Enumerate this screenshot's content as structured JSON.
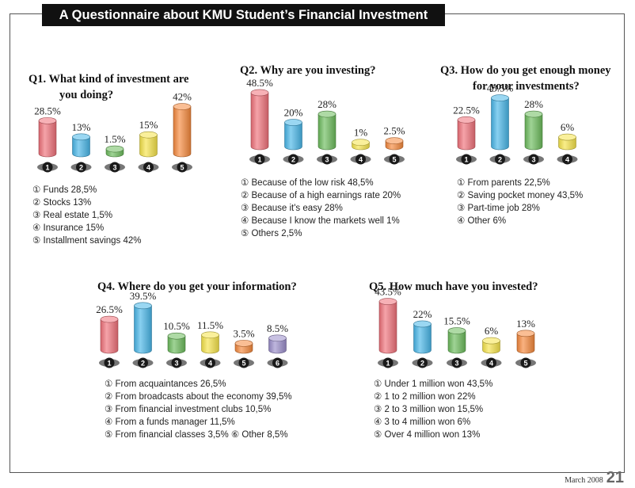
{
  "header": {
    "title": "A Questionnaire about KMU Student’s Financial Investment"
  },
  "colors": {
    "red": "#f0717a",
    "blue": "#48b6e8",
    "green": "#6cbc5c",
    "yellow": "#f6e44a",
    "orange": "#f5883c",
    "purple": "#9b8ecb"
  },
  "questions": {
    "q1": {
      "title_line1": "Q1. What kind of investment are",
      "title_line2": "you doing?",
      "legend": [
        "① Funds 28,5%",
        "② Stocks 13%",
        "③ Real estate 1,5%",
        "④ Insurance 15%",
        "⑤ Installment savings 42%"
      ]
    },
    "q2": {
      "title_line1": "Q2. Why are you investing?",
      "legend": [
        "① Because of the low risk 48,5%",
        "② Because of a high earnings rate 20%",
        "③ Because it's easy 28%",
        "④ Because I know the markets well 1%",
        "⑤ Others 2,5%"
      ]
    },
    "q3": {
      "title_line1": "Q3. How do you get enough money",
      "title_line2": "for your investments?",
      "legend": [
        "① From parents 22,5%",
        "② Saving pocket money 43,5%",
        "③ Part-time job 28%",
        "④ Other 6%"
      ]
    },
    "q4": {
      "title_line1": "Q4. Where do you get your information?",
      "legend": [
        "① From acquaintances 26,5%",
        "② From broadcasts about the economy 39,5%",
        "③ From financial investment clubs 10,5%",
        "④ From a funds manager 11,5%",
        "⑤ From financial classes 3,5%   ⑥ Other 8,5%"
      ]
    },
    "q5": {
      "title_line1": "Q5. How much have you invested?",
      "legend": [
        "① Under 1 million won 43,5%",
        "② 1 to 2 million won 22%",
        "③ 2 to 3 million won 15,5%",
        "④ 3 to 4 million won 6%",
        "⑤ Over 4 million won 13%"
      ]
    }
  },
  "chart_data": [
    {
      "type": "bar",
      "categories": [
        "1",
        "2",
        "3",
        "4",
        "5"
      ],
      "values": [
        28.5,
        13,
        1.5,
        15,
        42
      ],
      "labels": [
        "28.5%",
        "13%",
        "1.5%",
        "15%",
        "42%"
      ],
      "colors": [
        "red",
        "blue",
        "green",
        "yellow",
        "orange"
      ]
    },
    {
      "type": "bar",
      "categories": [
        "1",
        "2",
        "3",
        "4",
        "5"
      ],
      "values": [
        48.5,
        20,
        28,
        1,
        2.5
      ],
      "labels": [
        "48.5%",
        "20%",
        "28%",
        "1%",
        "2.5%"
      ],
      "colors": [
        "red",
        "blue",
        "green",
        "yellow",
        "orange"
      ]
    },
    {
      "type": "bar",
      "categories": [
        "1",
        "2",
        "3",
        "4"
      ],
      "values": [
        22.5,
        43.5,
        28,
        6
      ],
      "labels": [
        "22.5%",
        "43.5%",
        "28%",
        "6%"
      ],
      "colors": [
        "red",
        "blue",
        "green",
        "yellow"
      ]
    },
    {
      "type": "bar",
      "categories": [
        "1",
        "2",
        "3",
        "4",
        "5",
        "6"
      ],
      "values": [
        26.5,
        39.5,
        10.5,
        11.5,
        3.5,
        8.5
      ],
      "labels": [
        "26.5%",
        "39.5%",
        "10.5%",
        "11.5%",
        "3.5%",
        "8.5%"
      ],
      "colors": [
        "red",
        "blue",
        "green",
        "yellow",
        "orange",
        "purple"
      ]
    },
    {
      "type": "bar",
      "categories": [
        "1",
        "2",
        "3",
        "4",
        "5"
      ],
      "values": [
        43.5,
        22,
        15.5,
        6,
        13
      ],
      "labels": [
        "43.5%",
        "22%",
        "15.5%",
        "6%",
        "13%"
      ],
      "colors": [
        "red",
        "blue",
        "green",
        "yellow",
        "orange"
      ]
    }
  ],
  "footer": {
    "date": "March 2008",
    "page": "21"
  }
}
